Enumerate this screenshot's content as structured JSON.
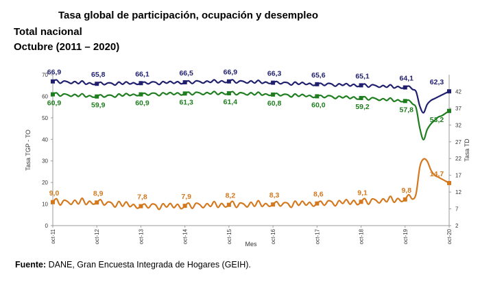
{
  "title": "Tasa global de participación, ocupación y desempleo",
  "subtitle1": "Total nacional",
  "subtitle2": "Octubre (2011 – 2020)",
  "source_label": "Fuente:",
  "source_text": "DANE, Gran Encuesta Integrada de Hogares (GEIH).",
  "chart_data": {
    "type": "line",
    "xlabel": "Mes",
    "ylabel_left": "Tasa TGP - TO",
    "ylabel_right": "Tasa TD",
    "ylim_left": [
      0,
      70
    ],
    "ylim_right": [
      2,
      47
    ],
    "yticks_left": [
      0,
      10,
      20,
      30,
      40,
      50,
      60,
      70
    ],
    "yticks_right": [
      2,
      7,
      12,
      17,
      22,
      27,
      32,
      37,
      42
    ],
    "categories": [
      "oct-11",
      "oct-12",
      "oct-13",
      "oct-14",
      "oct-15",
      "oct-16",
      "oct-17",
      "oct-18",
      "oct-19",
      "oct-20"
    ],
    "series": [
      {
        "name": "TGP",
        "axis": "left",
        "color": "#1f1f6e",
        "values": [
          66.9,
          65.8,
          66.1,
          66.5,
          66.9,
          66.3,
          65.6,
          65.1,
          64.1,
          62.3
        ],
        "labels": [
          "66,9",
          "65,8",
          "66,1",
          "66,5",
          "66,9",
          "66,3",
          "65,6",
          "65,1",
          "64,1",
          "62,3"
        ]
      },
      {
        "name": "TO",
        "axis": "left",
        "color": "#1e7d1e",
        "values": [
          60.9,
          59.9,
          60.9,
          61.3,
          61.4,
          60.8,
          60.0,
          59.2,
          57.8,
          53.2
        ],
        "labels": [
          "60,9",
          "59,9",
          "60,9",
          "61,3",
          "61,4",
          "60,8",
          "60,0",
          "59,2",
          "57,8",
          "53,2"
        ]
      },
      {
        "name": "TD",
        "axis": "right",
        "color": "#d4781e",
        "values": [
          9.0,
          8.9,
          7.8,
          7.9,
          8.2,
          8.3,
          8.6,
          9.1,
          9.8,
          14.7
        ],
        "labels": [
          "9,0",
          "8,9",
          "7,8",
          "7,9",
          "8,2",
          "8,3",
          "8,6",
          "9,1",
          "9,8",
          "14,7"
        ]
      }
    ]
  }
}
